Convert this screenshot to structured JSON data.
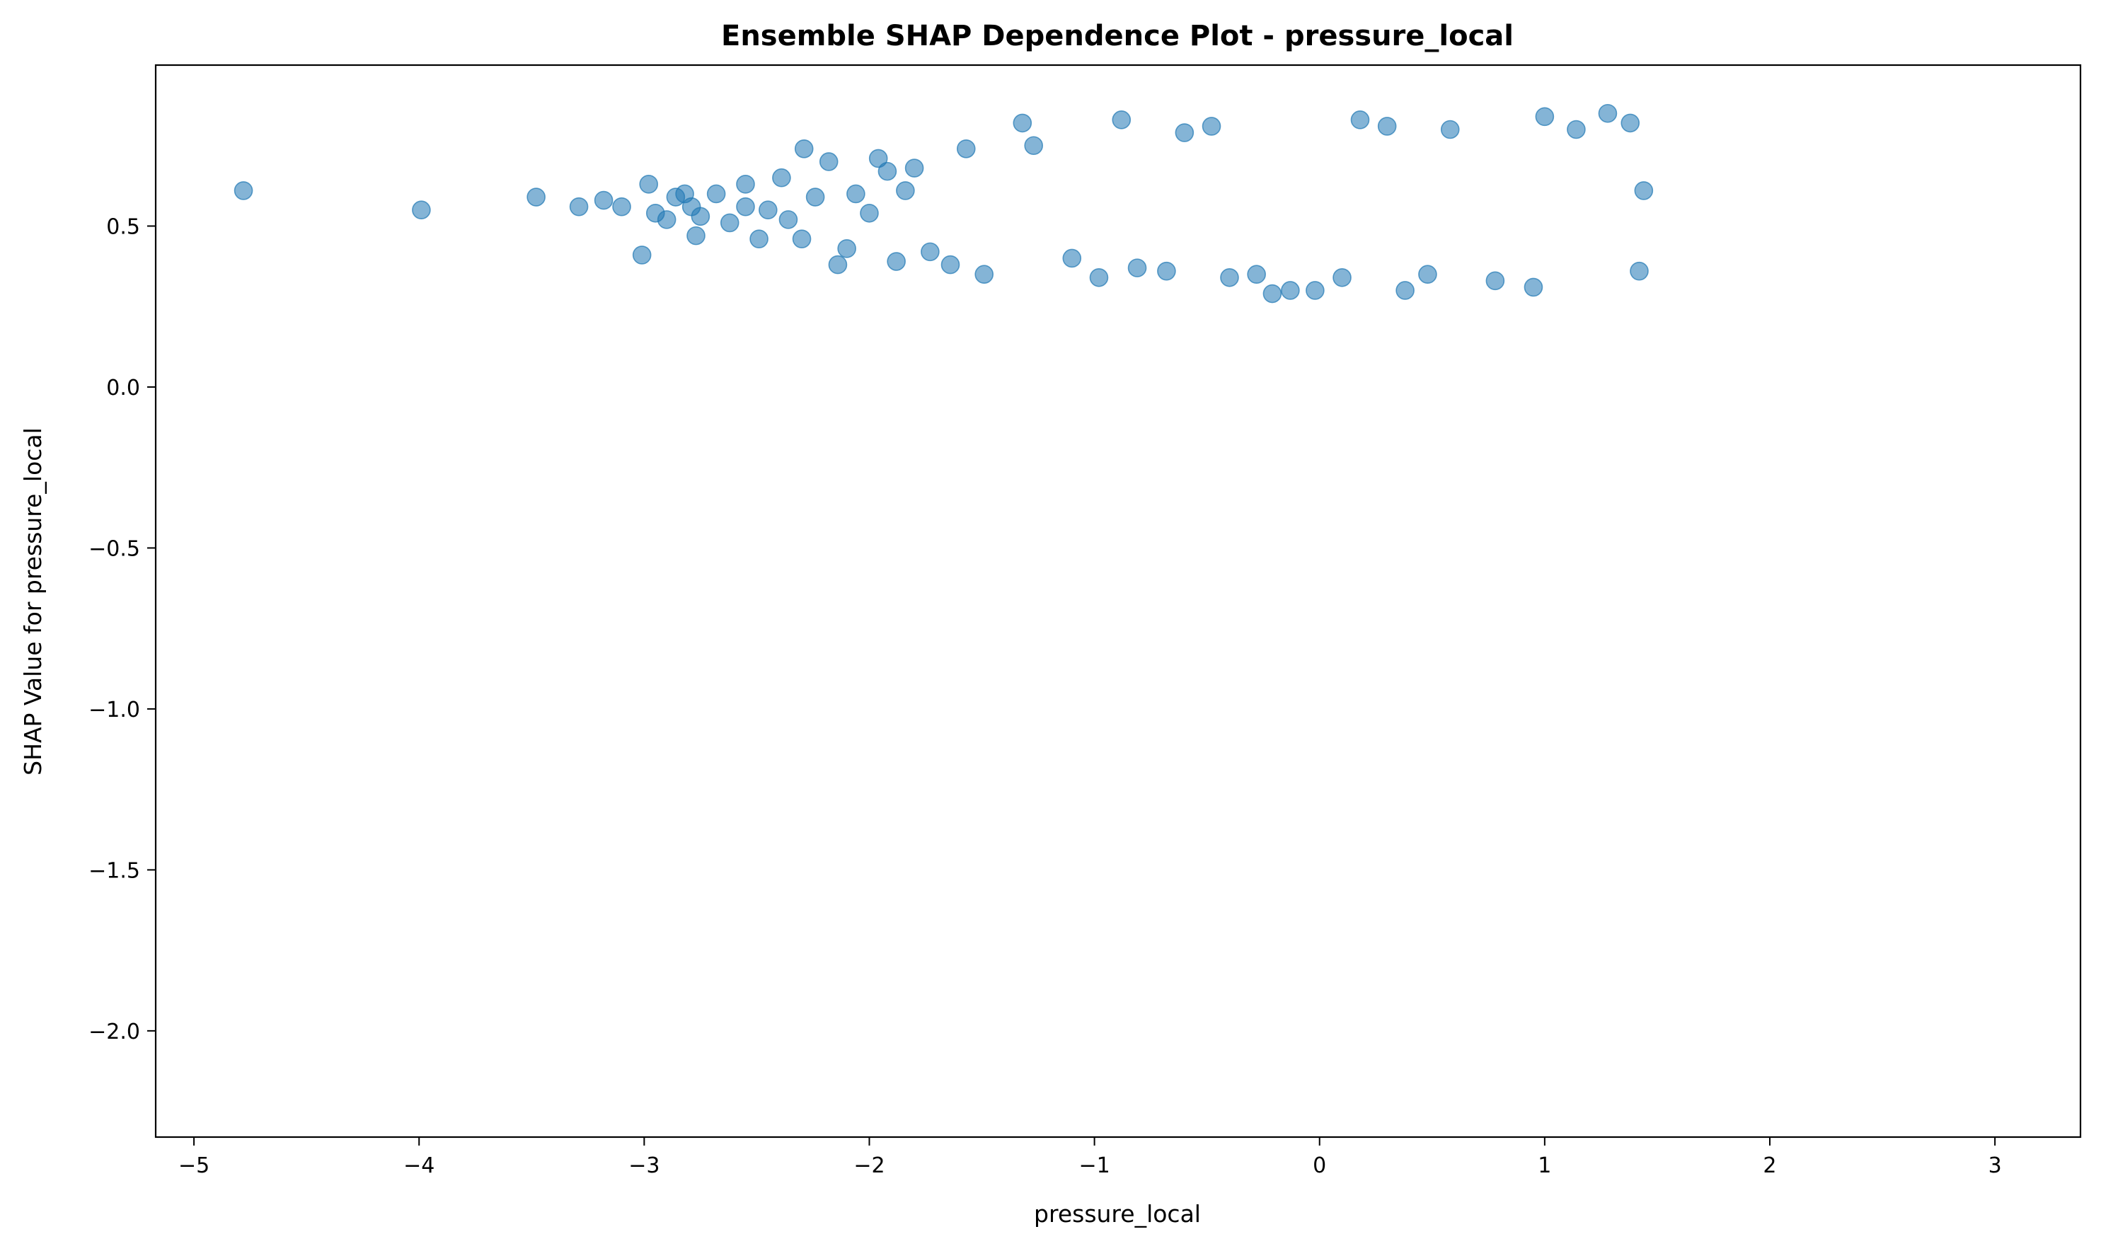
{
  "chart_data": {
    "type": "scatter",
    "title": "Ensemble SHAP Dependence Plot - pressure_local",
    "xlabel": "pressure_local",
    "ylabel": "SHAP Value for pressure_local",
    "xlim": [
      -5.17,
      3.38
    ],
    "ylim": [
      -2.33,
      1.0
    ],
    "xticks": [
      {
        "value": -5,
        "label": "−5"
      },
      {
        "value": -4,
        "label": "−4"
      },
      {
        "value": -3,
        "label": "−3"
      },
      {
        "value": -2,
        "label": "−2"
      },
      {
        "value": -1,
        "label": "−1"
      },
      {
        "value": 0,
        "label": "0"
      },
      {
        "value": 1,
        "label": "1"
      },
      {
        "value": 2,
        "label": "2"
      },
      {
        "value": 3,
        "label": "3"
      }
    ],
    "yticks": [
      {
        "value": 0.5,
        "label": "0.5"
      },
      {
        "value": 0.0,
        "label": "0.0"
      },
      {
        "value": -0.5,
        "label": "−0.5"
      },
      {
        "value": -1.0,
        "label": "−1.0"
      },
      {
        "value": -1.5,
        "label": "−1.5"
      },
      {
        "value": -2.0,
        "label": "−2.0"
      }
    ],
    "grid": false,
    "marker_color": "#1f77b4",
    "marker_alpha": 0.55,
    "series": [
      {
        "points": [
          [
            -4.78,
            0.61
          ],
          [
            -3.99,
            0.55
          ],
          [
            -3.48,
            0.59
          ],
          [
            -3.29,
            0.56
          ],
          [
            -3.18,
            0.58
          ],
          [
            -3.1,
            0.56
          ],
          [
            -2.98,
            0.63
          ],
          [
            -3.01,
            0.41
          ],
          [
            -2.95,
            0.54
          ],
          [
            -2.9,
            0.52
          ],
          [
            -2.86,
            0.59
          ],
          [
            -2.82,
            0.6
          ],
          [
            -2.79,
            0.56
          ],
          [
            -2.77,
            0.47
          ],
          [
            -2.75,
            0.53
          ],
          [
            -2.68,
            0.6
          ],
          [
            -2.62,
            0.51
          ],
          [
            -2.55,
            0.56
          ],
          [
            -2.55,
            0.63
          ],
          [
            -2.49,
            0.46
          ],
          [
            -2.45,
            0.55
          ],
          [
            -2.39,
            0.65
          ],
          [
            -2.36,
            0.52
          ],
          [
            -2.3,
            0.46
          ],
          [
            -2.29,
            0.74
          ],
          [
            -2.24,
            0.59
          ],
          [
            -2.18,
            0.7
          ],
          [
            -2.14,
            0.38
          ],
          [
            -2.1,
            0.43
          ],
          [
            -2.06,
            0.6
          ],
          [
            -2.0,
            0.54
          ],
          [
            -1.96,
            0.71
          ],
          [
            -1.92,
            0.67
          ],
          [
            -1.88,
            0.39
          ],
          [
            -1.84,
            0.61
          ],
          [
            -1.8,
            0.68
          ],
          [
            -1.73,
            0.42
          ],
          [
            -1.64,
            0.38
          ],
          [
            -1.57,
            0.74
          ],
          [
            -1.49,
            0.35
          ],
          [
            -1.32,
            0.82
          ],
          [
            -1.27,
            0.75
          ],
          [
            -1.1,
            0.4
          ],
          [
            -0.98,
            0.34
          ],
          [
            -0.88,
            0.83
          ],
          [
            -0.81,
            0.37
          ],
          [
            -0.68,
            0.36
          ],
          [
            -0.6,
            0.79
          ],
          [
            -0.48,
            0.81
          ],
          [
            -0.4,
            0.34
          ],
          [
            -0.28,
            0.35
          ],
          [
            -0.21,
            0.29
          ],
          [
            -0.13,
            0.3
          ],
          [
            -0.02,
            0.3
          ],
          [
            0.1,
            0.34
          ],
          [
            0.18,
            0.83
          ],
          [
            0.3,
            0.81
          ],
          [
            0.38,
            0.3
          ],
          [
            0.48,
            0.35
          ],
          [
            0.58,
            0.8
          ],
          [
            0.78,
            0.33
          ],
          [
            0.95,
            0.31
          ],
          [
            1.0,
            0.84
          ],
          [
            1.14,
            0.8
          ],
          [
            1.28,
            0.85
          ],
          [
            1.38,
            0.82
          ],
          [
            1.42,
            0.36
          ],
          [
            1.44,
            0.61
          ]
        ]
      }
    ]
  }
}
